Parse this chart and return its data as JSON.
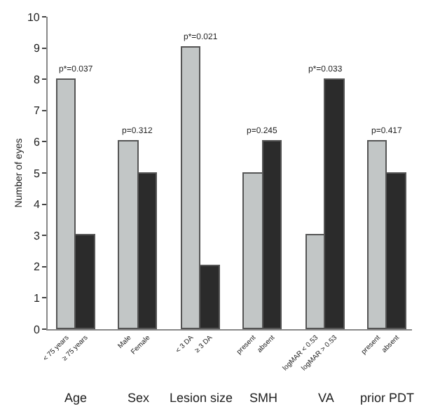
{
  "chart_data": {
    "type": "bar",
    "ylabel": "Number of eyes",
    "categories": [
      "< 75 years",
      "≥ 75 years",
      "Male",
      "Female",
      "< 3 DA",
      "≥ 3 DA",
      "present",
      "absent",
      "logMAR < 0.53",
      "logMAR > 0.53",
      "present",
      "absent"
    ],
    "values": [
      8,
      3,
      6,
      5,
      9,
      2,
      5,
      6,
      3,
      8,
      6,
      5
    ],
    "colors": [
      "#c2c6c6",
      "#2b2b2b",
      "#c2c6c6",
      "#2b2b2b",
      "#c2c6c6",
      "#2b2b2b",
      "#c2c6c6",
      "#2b2b2b",
      "#c2c6c6",
      "#2b2b2b",
      "#c2c6c6",
      "#2b2b2b"
    ],
    "ylim": [
      0,
      10
    ],
    "yticks": [
      0,
      1,
      2,
      3,
      4,
      5,
      6,
      7,
      8,
      9,
      10
    ],
    "annotations": [
      "p*=0.037",
      "p=0.312",
      "p*=0.021",
      "p=0.245",
      "p*=0.033",
      "p=0.417",
      "Age",
      "Sex",
      "Lesion size",
      "SMH",
      "VA",
      "prior PDT"
    ]
  }
}
